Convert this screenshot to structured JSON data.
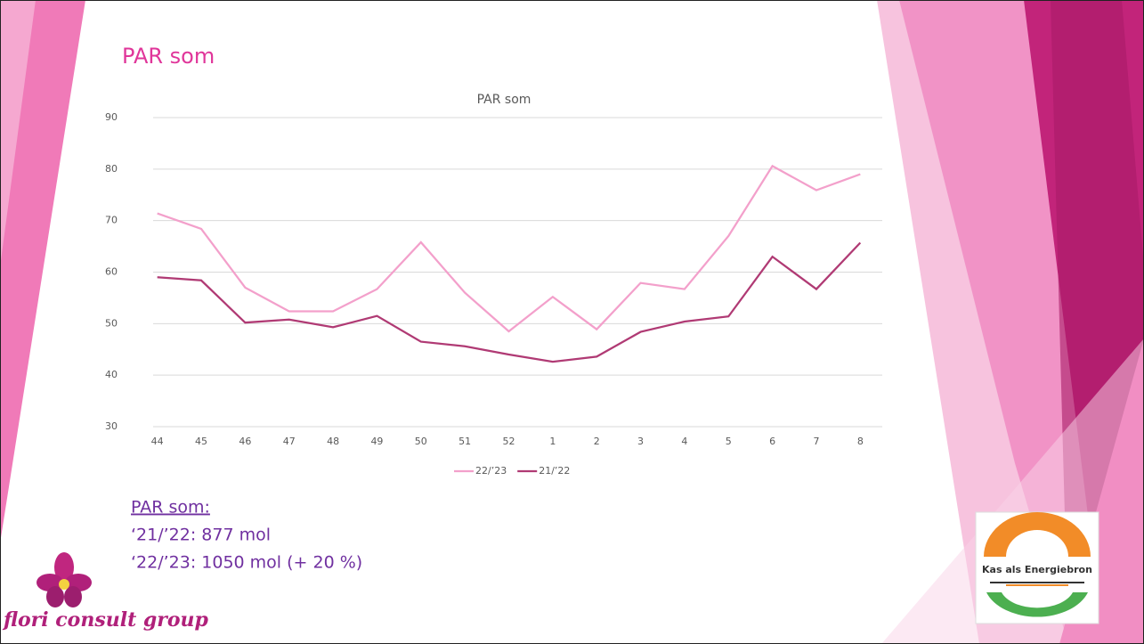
{
  "slide_title": "PAR som",
  "chart_data": {
    "type": "line",
    "title": "PAR som",
    "categories": [
      "44",
      "45",
      "46",
      "47",
      "48",
      "49",
      "50",
      "51",
      "52",
      "1",
      "2",
      "3",
      "4",
      "5",
      "6",
      "7",
      "8"
    ],
    "series": [
      {
        "name": "22/’23",
        "color": "#f3a0cb",
        "values": [
          71.4,
          68.4,
          57,
          52.4,
          52.4,
          56.7,
          65.8,
          56,
          48.5,
          55.2,
          48.9,
          57.9,
          56.7,
          67,
          80.6,
          75.9,
          79
        ]
      },
      {
        "name": "21/’22",
        "color": "#b03a74",
        "values": [
          59,
          58.4,
          50.2,
          50.8,
          49.3,
          51.5,
          46.5,
          45.6,
          44,
          42.6,
          43.6,
          48.4,
          50.4,
          51.4,
          63,
          56.7,
          65.7
        ]
      }
    ],
    "ylim": [
      30,
      90
    ],
    "yticks": [
      30,
      40,
      50,
      60,
      70,
      80,
      90
    ],
    "grid": true,
    "legend": "bottom"
  },
  "notes": {
    "heading": "PAR som:",
    "lines": [
      "‘21/’22: 877 mol",
      "‘22/’23: 1050 mol (+ 20 %)"
    ]
  },
  "logos": {
    "left": "flori consult group",
    "right": "Kas als Energiebron"
  }
}
